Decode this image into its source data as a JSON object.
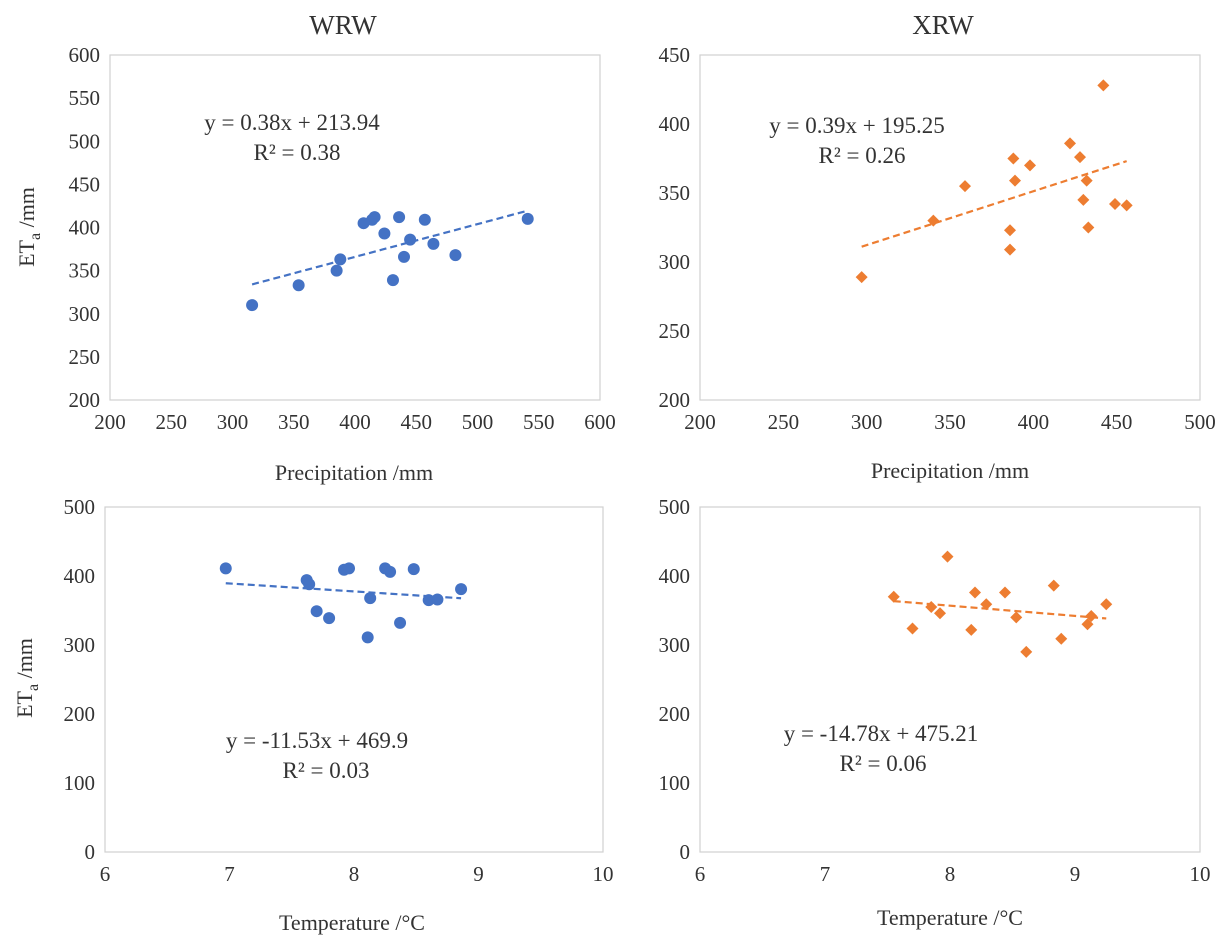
{
  "titles": {
    "left": "WRW",
    "right": "XRW"
  },
  "colors": {
    "wrw": "#4472C4",
    "xrw": "#ED7D31"
  },
  "chart_data": [
    {
      "id": "wrw-precip",
      "type": "scatter",
      "marker": "circle",
      "color": "#4472C4",
      "column_title": "WRW",
      "xlabel": "Precipitation /mm",
      "ylabel": "ETa /mm",
      "xlim": [
        200,
        600
      ],
      "xticks": [
        200,
        250,
        300,
        350,
        400,
        450,
        500,
        550,
        600
      ],
      "ylim": [
        200,
        600
      ],
      "yticks": [
        200,
        250,
        300,
        350,
        400,
        450,
        500,
        550,
        600
      ],
      "equation": "y = 0.38x + 213.94",
      "r2": "R² = 0.38",
      "trendline": {
        "slope": 0.38,
        "intercept": 213.94,
        "x_range": [
          316,
          540
        ]
      },
      "points": [
        {
          "x": 316,
          "y": 310
        },
        {
          "x": 354,
          "y": 333
        },
        {
          "x": 385,
          "y": 350
        },
        {
          "x": 388,
          "y": 363
        },
        {
          "x": 407,
          "y": 405
        },
        {
          "x": 414,
          "y": 409
        },
        {
          "x": 416,
          "y": 412
        },
        {
          "x": 424,
          "y": 393
        },
        {
          "x": 431,
          "y": 339
        },
        {
          "x": 436,
          "y": 412
        },
        {
          "x": 440,
          "y": 366
        },
        {
          "x": 445,
          "y": 386
        },
        {
          "x": 457,
          "y": 409
        },
        {
          "x": 464,
          "y": 381
        },
        {
          "x": 482,
          "y": 368
        },
        {
          "x": 541,
          "y": 410
        }
      ]
    },
    {
      "id": "xrw-precip",
      "type": "scatter",
      "marker": "diamond",
      "color": "#ED7D31",
      "column_title": "XRW",
      "xlabel": "Precipitation /mm",
      "ylabel": "",
      "xlim": [
        200,
        500
      ],
      "xticks": [
        200,
        250,
        300,
        350,
        400,
        450,
        500
      ],
      "ylim": [
        200,
        450
      ],
      "yticks": [
        200,
        250,
        300,
        350,
        400,
        450
      ],
      "equation": "y = 0.39x + 195.25",
      "r2": "R² = 0.26",
      "trendline": {
        "slope": 0.39,
        "intercept": 195.25,
        "x_range": [
          297,
          456
        ]
      },
      "points": [
        {
          "x": 297,
          "y": 289
        },
        {
          "x": 340,
          "y": 330
        },
        {
          "x": 359,
          "y": 355
        },
        {
          "x": 386,
          "y": 309
        },
        {
          "x": 386,
          "y": 323
        },
        {
          "x": 388,
          "y": 375
        },
        {
          "x": 389,
          "y": 359
        },
        {
          "x": 398,
          "y": 370
        },
        {
          "x": 422,
          "y": 386
        },
        {
          "x": 428,
          "y": 376
        },
        {
          "x": 430,
          "y": 345
        },
        {
          "x": 432,
          "y": 359
        },
        {
          "x": 433,
          "y": 325
        },
        {
          "x": 442,
          "y": 428
        },
        {
          "x": 449,
          "y": 342
        },
        {
          "x": 456,
          "y": 341
        }
      ]
    },
    {
      "id": "wrw-temp",
      "type": "scatter",
      "marker": "circle",
      "color": "#4472C4",
      "xlabel": "Temperature  /°C",
      "ylabel": "ETa /mm",
      "xlim": [
        6,
        10
      ],
      "xticks": [
        6,
        7,
        8,
        9,
        10
      ],
      "ylim": [
        0,
        500
      ],
      "yticks": [
        0,
        100,
        200,
        300,
        400,
        500
      ],
      "equation": "y = -11.53x + 469.9",
      "r2": "R² = 0.03",
      "trendline": {
        "slope": -11.53,
        "intercept": 469.9,
        "x_range": [
          6.97,
          8.86
        ]
      },
      "points": [
        {
          "x": 6.97,
          "y": 411
        },
        {
          "x": 7.62,
          "y": 394
        },
        {
          "x": 7.64,
          "y": 388
        },
        {
          "x": 7.7,
          "y": 349
        },
        {
          "x": 7.8,
          "y": 339
        },
        {
          "x": 7.92,
          "y": 409
        },
        {
          "x": 7.96,
          "y": 411
        },
        {
          "x": 8.11,
          "y": 311
        },
        {
          "x": 8.13,
          "y": 368
        },
        {
          "x": 8.25,
          "y": 411
        },
        {
          "x": 8.29,
          "y": 406
        },
        {
          "x": 8.37,
          "y": 332
        },
        {
          "x": 8.48,
          "y": 410
        },
        {
          "x": 8.6,
          "y": 365
        },
        {
          "x": 8.67,
          "y": 366
        },
        {
          "x": 8.86,
          "y": 381
        }
      ]
    },
    {
      "id": "xrw-temp",
      "type": "scatter",
      "marker": "diamond",
      "color": "#ED7D31",
      "xlabel": "Temperature  /°C",
      "ylabel": "",
      "xlim": [
        6,
        10
      ],
      "xticks": [
        6,
        7,
        8,
        9,
        10
      ],
      "ylim": [
        0,
        500
      ],
      "yticks": [
        0,
        100,
        200,
        300,
        400,
        500
      ],
      "equation": "y = -14.78x + 475.21",
      "r2": "R² = 0.06",
      "trendline": {
        "slope": -14.78,
        "intercept": 475.21,
        "x_range": [
          7.55,
          9.25
        ]
      },
      "points": [
        {
          "x": 7.55,
          "y": 370
        },
        {
          "x": 7.7,
          "y": 324
        },
        {
          "x": 7.85,
          "y": 355
        },
        {
          "x": 7.92,
          "y": 346
        },
        {
          "x": 7.98,
          "y": 428
        },
        {
          "x": 8.17,
          "y": 322
        },
        {
          "x": 8.2,
          "y": 376
        },
        {
          "x": 8.29,
          "y": 359
        },
        {
          "x": 8.44,
          "y": 376
        },
        {
          "x": 8.53,
          "y": 340
        },
        {
          "x": 8.61,
          "y": 290
        },
        {
          "x": 8.83,
          "y": 386
        },
        {
          "x": 8.89,
          "y": 309
        },
        {
          "x": 9.1,
          "y": 330
        },
        {
          "x": 9.13,
          "y": 342
        },
        {
          "x": 9.25,
          "y": 359
        }
      ]
    }
  ]
}
